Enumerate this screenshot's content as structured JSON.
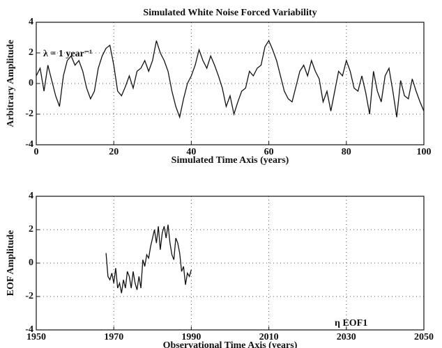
{
  "chart_data": [
    {
      "type": "line",
      "title": "Simulated White Noise Forced Variability",
      "x_label": "Simulated Time Axis (years)",
      "y_label": "Arbitrary Amplitude",
      "annotation": "λ = 1 year⁻¹",
      "xlim": [
        0,
        100
      ],
      "xticks": [
        0,
        20,
        40,
        60,
        80,
        100
      ],
      "ylim": [
        -4,
        4
      ],
      "yticks": [
        -4,
        -2,
        0,
        2,
        4
      ],
      "grid": true,
      "series": [
        {
          "color": "#111111",
          "x": [
            0,
            1,
            2,
            3,
            4,
            5,
            6,
            7,
            8,
            9,
            10,
            11,
            12,
            13,
            14,
            15,
            16,
            17,
            18,
            19,
            20,
            21,
            22,
            23,
            24,
            25,
            26,
            27,
            28,
            29,
            30,
            31,
            32,
            33,
            34,
            35,
            36,
            37,
            38,
            39,
            40,
            41,
            42,
            43,
            44,
            45,
            46,
            47,
            48,
            49,
            50,
            51,
            52,
            53,
            54,
            55,
            56,
            57,
            58,
            59,
            60,
            61,
            62,
            63,
            64,
            65,
            66,
            67,
            68,
            69,
            70,
            71,
            72,
            73,
            74,
            75,
            76,
            77,
            78,
            79,
            80,
            81,
            82,
            83,
            84,
            85,
            86,
            87,
            88,
            89,
            90,
            91,
            92,
            93,
            94,
            95,
            96,
            97,
            98,
            99,
            100
          ],
          "values": [
            0.5,
            1,
            -0.5,
            1.2,
            0.2,
            -0.8,
            -1.5,
            0.5,
            1.5,
            1.8,
            1.2,
            1.5,
            0.8,
            -0.3,
            -1,
            -0.5,
            1,
            1.8,
            2.3,
            2.5,
            1.2,
            -0.5,
            -0.8,
            -0.2,
            0.5,
            -0.3,
            0.8,
            1,
            1.5,
            0.8,
            1.5,
            2.8,
            2,
            1.5,
            0.8,
            -0.5,
            -1.5,
            -2.2,
            -1,
            0,
            0.5,
            1.2,
            2.2,
            1.5,
            1,
            1.8,
            1.2,
            0.5,
            -0.3,
            -1.5,
            -0.8,
            -2,
            -1.2,
            -0.5,
            -0.3,
            0.8,
            0.5,
            1,
            1.2,
            2.4,
            2.8,
            2.2,
            1.5,
            0.5,
            -0.5,
            -1,
            -1.2,
            -0.2,
            0.8,
            1.2,
            0.5,
            1.5,
            0.8,
            0.3,
            -1.2,
            -0.5,
            -1.8,
            -0.5,
            0.8,
            0.5,
            1.5,
            0.8,
            -0.3,
            -0.5,
            0.5,
            -0.6,
            -2,
            0.8,
            -0.5,
            -1.2,
            0.5,
            1,
            -0.5,
            -2.2,
            0.2,
            -0.8,
            -1,
            0.3,
            -0.5,
            -1.2,
            -1.8
          ]
        }
      ]
    },
    {
      "type": "line",
      "x_label": "Observational Time Axis (years)",
      "y_label": "EOF Amplitude",
      "annotation": "η EOF1",
      "xlim": [
        1950,
        2050
      ],
      "xticks": [
        1950,
        1970,
        1990,
        2010,
        2030,
        2050
      ],
      "ylim": [
        -4,
        4
      ],
      "yticks": [
        -4,
        -2,
        0,
        2,
        4
      ],
      "grid": true,
      "series": [
        {
          "color": "#111111",
          "x": [
            1968,
            1968.5,
            1969,
            1969.5,
            1970,
            1970.5,
            1971,
            1971.5,
            1972,
            1972.5,
            1973,
            1973.5,
            1974,
            1974.5,
            1975,
            1975.5,
            1976,
            1976.5,
            1977,
            1977.5,
            1978,
            1978.5,
            1979,
            1979.5,
            1980,
            1980.5,
            1981,
            1981.5,
            1982,
            1982.5,
            1983,
            1983.5,
            1984,
            1984.5,
            1985,
            1985.5,
            1986,
            1986.5,
            1987,
            1987.5,
            1988,
            1988.5,
            1989,
            1989.5,
            1990
          ],
          "values": [
            0.6,
            -0.8,
            -1,
            -0.6,
            -1.2,
            -0.3,
            -1.5,
            -1.2,
            -1.8,
            -1,
            -1.5,
            -0.5,
            -0.8,
            -1.5,
            -0.5,
            -1.2,
            -1.6,
            -0.8,
            -1.5,
            0.2,
            -0.2,
            0.5,
            0.3,
            1,
            1.5,
            2,
            1.2,
            2.2,
            0.8,
            1.8,
            2.2,
            1.5,
            2.3,
            1.2,
            0.5,
            0.2,
            1.5,
            1.2,
            0.6,
            -0.5,
            -0.2,
            -1.3,
            -0.6,
            -0.8,
            -0.4
          ]
        }
      ]
    }
  ]
}
